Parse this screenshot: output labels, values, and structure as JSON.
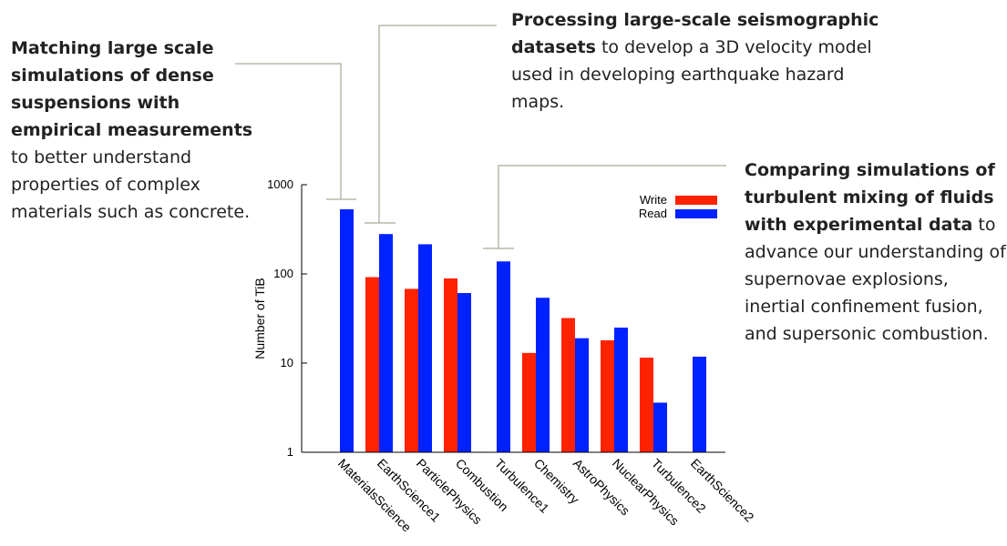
{
  "annotations": {
    "left": {
      "bold": "Matching large scale simulations of dense suspensions with empirical measurements",
      "rest": "to better understand properties of complex materials such as concrete."
    },
    "top": {
      "bold": "Processing large-scale seismographic datasets",
      "rest": "to develop a 3D velocity model used in developing earthquake hazard maps."
    },
    "right": {
      "bold": "Comparing simulations of turbulent mixing of fluids with experimental data",
      "rest": "to advance our understanding of supernovae explosions, inertial confinement fusion, and supersonic combustion."
    }
  },
  "chart_data": {
    "type": "bar",
    "scale": "log",
    "ylabel": "Number of TiB",
    "ylim": [
      1,
      1000
    ],
    "yticks": [
      "1",
      "10",
      "100",
      "1000"
    ],
    "categories": [
      "MaterialsScience",
      "EarthScience1",
      "ParticlePhysics",
      "Combustion",
      "Turbulence1",
      "Chemistry",
      "AstroPhysics",
      "NuclearPhysics",
      "Turbulence2",
      "EarthScience2"
    ],
    "series": [
      {
        "name": "Write",
        "color": "#ff2200",
        "values": [
          null,
          92,
          68,
          89,
          null,
          13,
          32,
          18,
          11.5,
          null
        ]
      },
      {
        "name": "Read",
        "color": "#0022ff",
        "values": [
          530,
          280,
          215,
          61,
          138,
          54,
          19,
          25,
          3.6,
          11.8
        ]
      }
    ],
    "legend": "top-right",
    "grid": false
  }
}
